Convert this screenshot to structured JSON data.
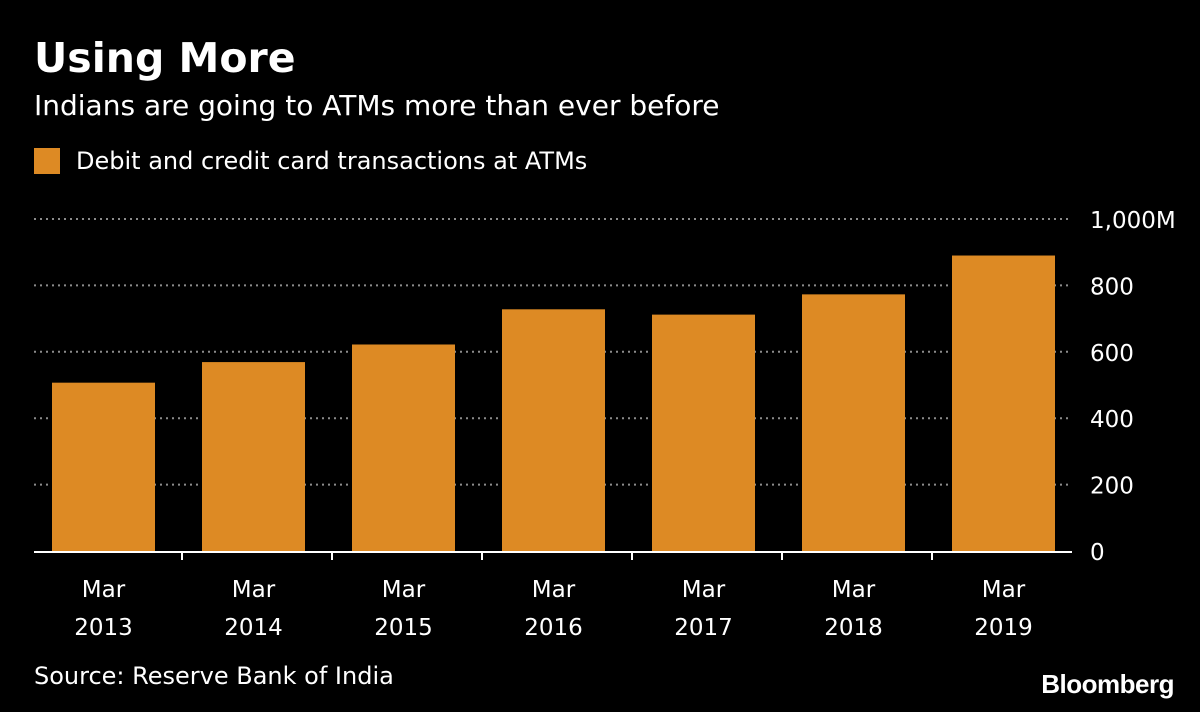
{
  "title": "Using More",
  "subtitle": "Indians are going to ATMs more than ever before",
  "source": "Source: Reserve Bank of India",
  "logo": "Bloomberg",
  "colors": {
    "background": "#000000",
    "bar": "#dd8a24",
    "grid": "#8c8c8c",
    "axis": "#ffffff",
    "text": "#ffffff"
  },
  "chart_data": {
    "type": "bar",
    "categories": [
      [
        "Mar",
        "2013"
      ],
      [
        "Mar",
        "2014"
      ],
      [
        "Mar",
        "2015"
      ],
      [
        "Mar",
        "2016"
      ],
      [
        "Mar",
        "2017"
      ],
      [
        "Mar",
        "2018"
      ],
      [
        "Mar",
        "2019"
      ]
    ],
    "series": [
      {
        "name": "Debit and credit card transactions at ATMs",
        "values": [
          507,
          569,
          622,
          728,
          712,
          773,
          890
        ]
      }
    ],
    "yticks": [
      0,
      200,
      400,
      600,
      800,
      1000
    ],
    "ytick_labels": [
      "0",
      "200",
      "400",
      "600",
      "800",
      "1,000M"
    ],
    "ylim": [
      0,
      1000
    ],
    "grid": true,
    "grid_style": "dotted",
    "y_axis_side": "right",
    "legend_position": "top-left"
  }
}
